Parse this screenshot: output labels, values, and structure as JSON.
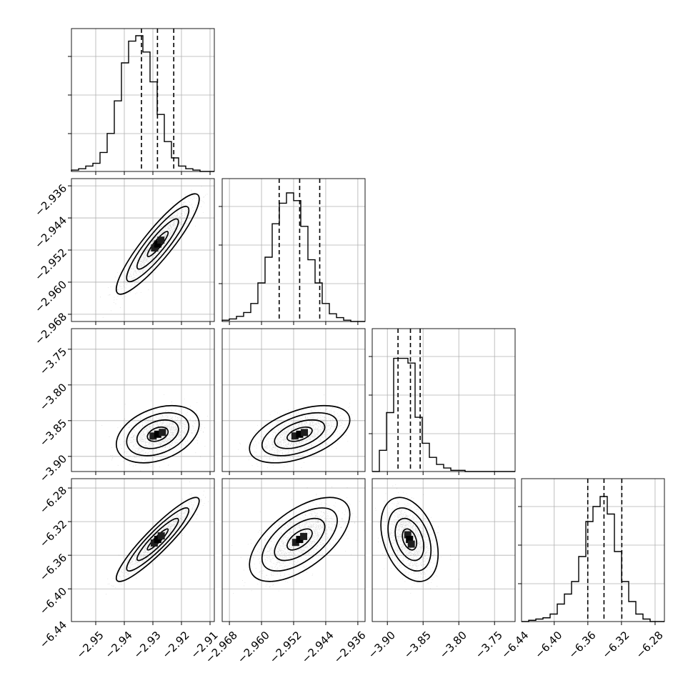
{
  "chart_data": {
    "type": "corner",
    "parameters": [
      {
        "ticks": [
          -2.95,
          -2.94,
          -2.93,
          -2.92,
          -2.91
        ],
        "tick_labels": [
          "−2.95",
          "−2.94",
          "−2.93",
          "−2.92",
          "−2.91"
        ],
        "range": [
          -2.9585,
          -2.9085
        ],
        "quantiles": [
          -2.934,
          -2.9284,
          -2.9227
        ],
        "mean": -2.9283,
        "sd": 0.0058
      },
      {
        "ticks": [
          -2.968,
          -2.96,
          -2.952,
          -2.944,
          -2.936
        ],
        "tick_labels": [
          "−2.968",
          "−2.960",
          "−2.952",
          "−2.944",
          "−2.936"
        ],
        "range": [
          -2.9698,
          -2.9342
        ],
        "quantiles": [
          -2.9556,
          -2.9505,
          -2.9455
        ],
        "mean": -2.9505,
        "sd": 0.005
      },
      {
        "ticks": [
          -3.9,
          -3.85,
          -3.8,
          -3.75
        ],
        "tick_labels": [
          "−3.90",
          "−3.85",
          "−3.80",
          "−3.75"
        ],
        "range": [
          -3.9212,
          -3.7212
        ],
        "quantiles": [
          -3.8851,
          -3.8677,
          -3.8541
        ],
        "mean": -3.869,
        "sd": 0.016
      },
      {
        "ticks": [
          -6.44,
          -6.4,
          -6.36,
          -6.32,
          -6.28
        ],
        "tick_labels": [
          "−6.44",
          "−6.40",
          "−6.36",
          "−6.32",
          "−6.28"
        ],
        "range": [
          -6.4389,
          -6.2689
        ],
        "quantiles": [
          -6.3601,
          -6.3408,
          -6.3196
        ],
        "mean": -6.3412,
        "sd": 0.02
      }
    ],
    "correlations": [
      [
        1,
        0.9,
        0.35,
        0.92
      ],
      [
        0.9,
        1,
        0.5,
        0.6
      ],
      [
        0.35,
        0.5,
        1,
        -0.35
      ],
      [
        0.92,
        0.6,
        -0.35,
        1
      ]
    ],
    "histograms": [
      [
        0.01,
        0.02,
        0.04,
        0.06,
        0.14,
        0.28,
        0.52,
        0.8,
        0.96,
        1.0,
        0.88,
        0.66,
        0.42,
        0.22,
        0.1,
        0.04,
        0.02,
        0.01,
        0.0,
        0.0
      ],
      [
        0.01,
        0.02,
        0.04,
        0.07,
        0.14,
        0.3,
        0.5,
        0.76,
        0.92,
        1.0,
        0.94,
        0.74,
        0.48,
        0.3,
        0.14,
        0.06,
        0.03,
        0.01,
        0.0,
        0.0
      ],
      [
        0.0,
        0.18,
        0.5,
        0.96,
        0.96,
        0.92,
        0.46,
        0.24,
        0.12,
        0.06,
        0.03,
        0.01,
        0.01,
        0.0,
        0.0,
        0.0,
        0.0,
        0.0,
        0.0,
        0.0
      ],
      [
        0.0,
        0.01,
        0.02,
        0.03,
        0.06,
        0.14,
        0.22,
        0.32,
        0.52,
        0.8,
        0.92,
        1.0,
        0.86,
        0.56,
        0.32,
        0.16,
        0.06,
        0.02,
        0.0,
        0.0
      ]
    ],
    "contour_levels_sigma": [
      0.5,
      1.0,
      1.5,
      2.0
    ],
    "grid": true,
    "legend": "none"
  }
}
